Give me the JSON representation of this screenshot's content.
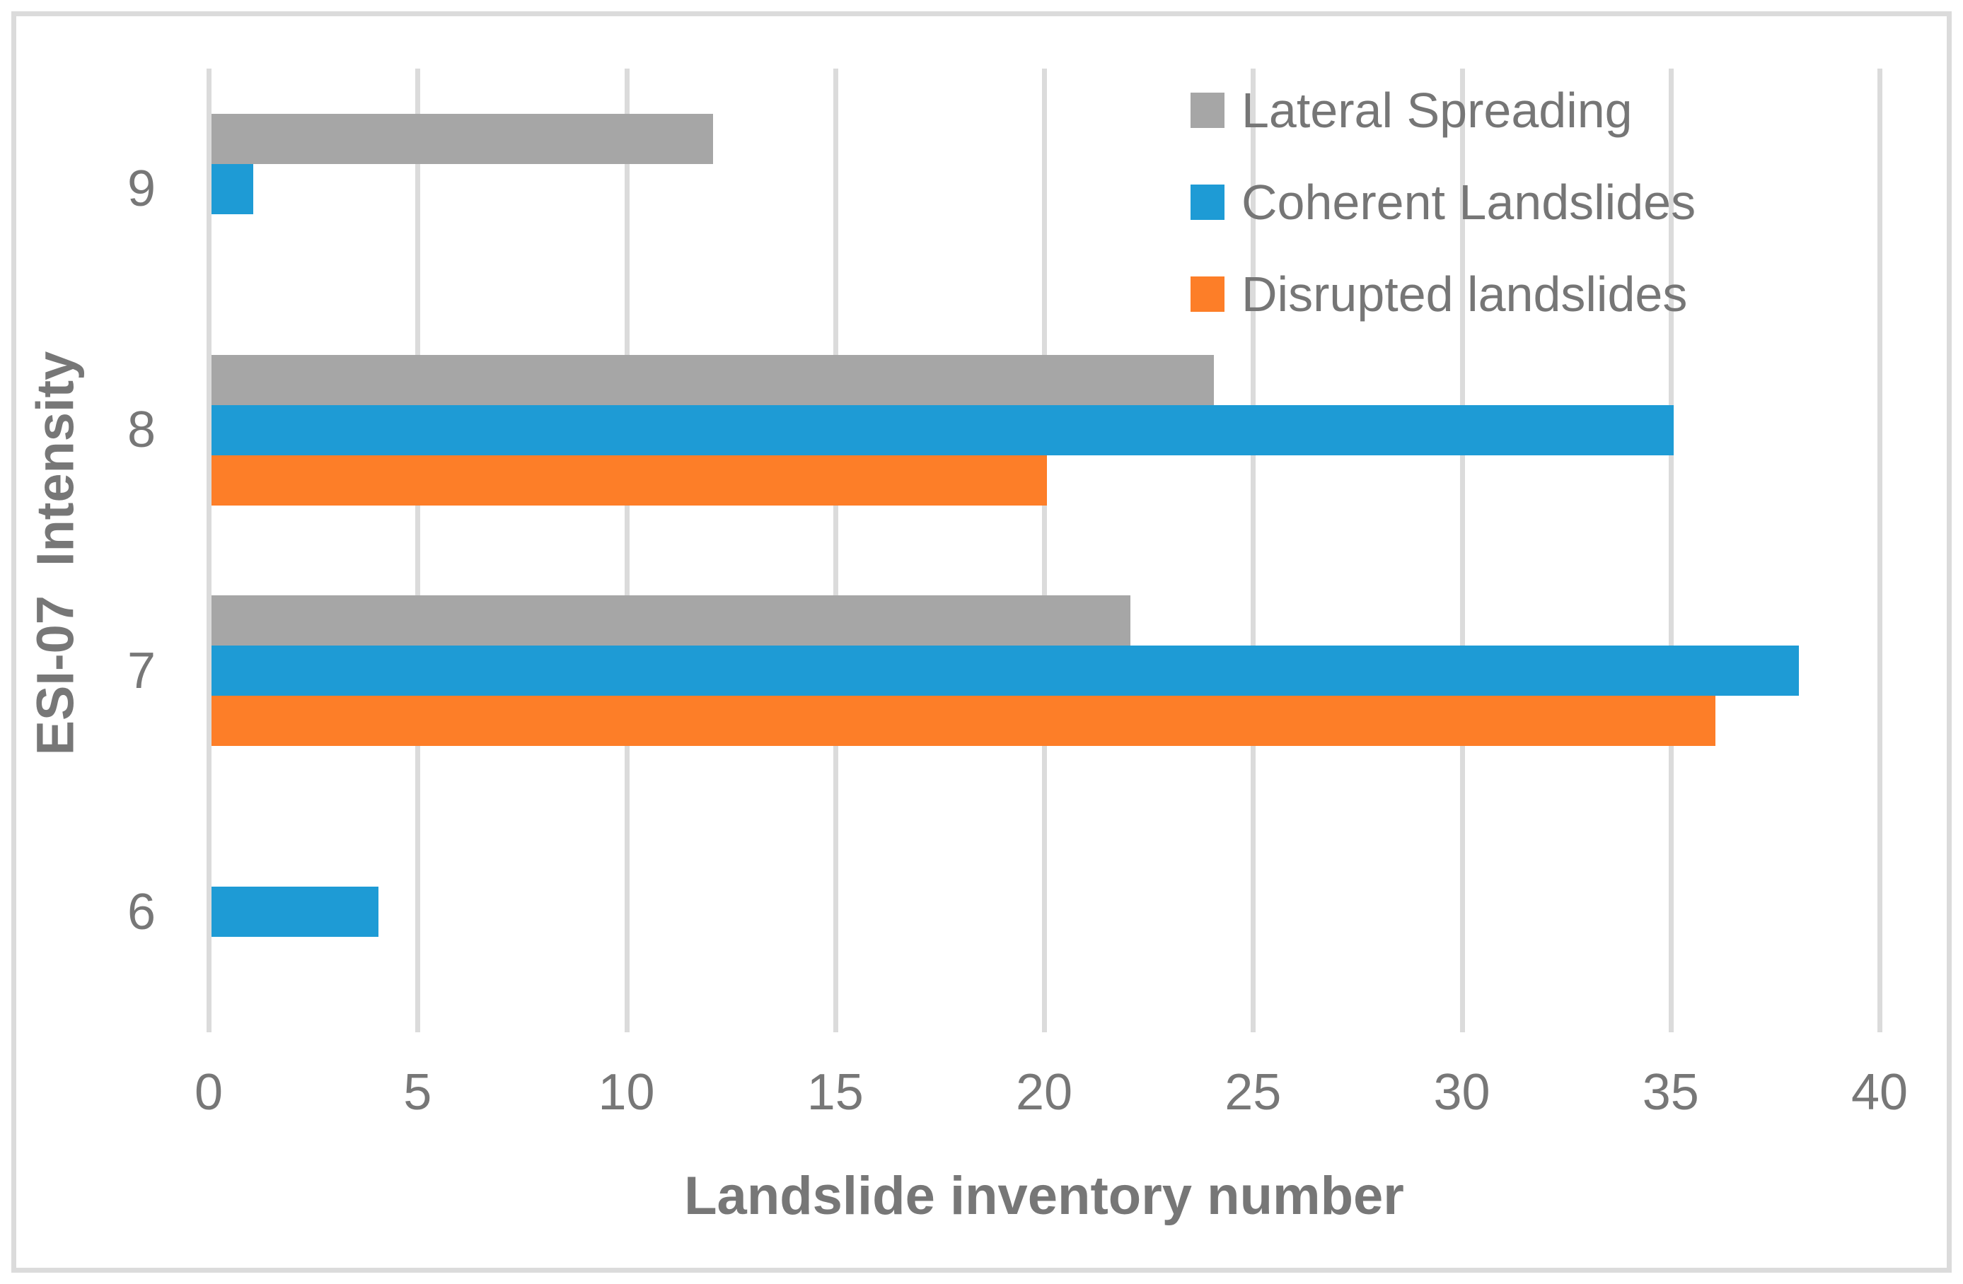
{
  "chart_data": {
    "type": "bar",
    "orientation": "horizontal",
    "title": "",
    "xlabel": "Landslide inventory number",
    "ylabel": "ESI-07  Intensity",
    "categories": [
      "9",
      "8",
      "7",
      "6"
    ],
    "series": [
      {
        "name": "Lateral Spreading",
        "color": "#A6A6A6",
        "values": [
          12,
          24,
          22,
          0
        ]
      },
      {
        "name": "Coherent Landslides",
        "color": "#1E9BD5",
        "values": [
          1,
          35,
          38,
          4
        ]
      },
      {
        "name": "Disrupted landslides",
        "color": "#FD7E28",
        "values": [
          0,
          20,
          36,
          0
        ]
      }
    ],
    "xlim": [
      0,
      40
    ],
    "xticks": [
      0,
      5,
      10,
      15,
      20,
      25,
      30,
      35,
      40
    ],
    "grid": true,
    "legend_position": "top-right",
    "gridline_color": "#DBDBDB",
    "text_color": "#777777",
    "frame_border_color": "#DBDBDB",
    "background_color": "#FFFFFF"
  }
}
